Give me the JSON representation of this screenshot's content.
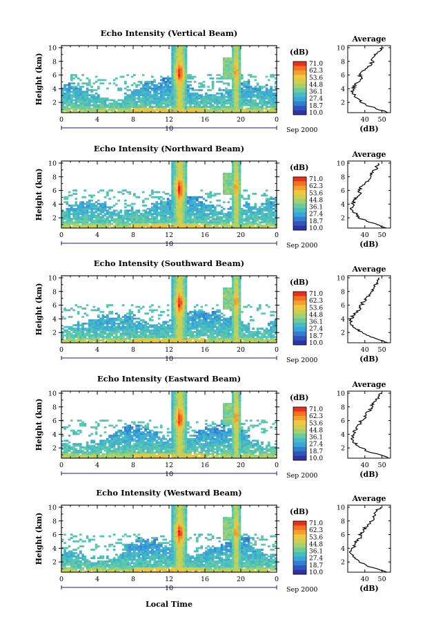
{
  "figure": {
    "xlabel": "Local Time",
    "date_label": "Sep 2000",
    "date_tick": "10",
    "colorbar_unit": "(dB)",
    "colorbar_ticks": [
      "71.0",
      "62.3",
      "53.6",
      "44.8",
      "36.1",
      "27.4",
      "18.7",
      "10.0"
    ],
    "colorbar_colors": [
      "#e3101e",
      "#f57f20",
      "#f3c63e",
      "#b9d35a",
      "#55c9b0",
      "#38a3dc",
      "#2e5fc0",
      "#35209a"
    ],
    "avg_title": "Average",
    "avg_xlabel": "(dB)",
    "ylabel": "Height (km)"
  },
  "chart_data": [
    {
      "type": "heatmap",
      "title": "Echo Intensity (Vertical Beam)",
      "ylabel": "Height (km)",
      "xlabel": "Local Time",
      "x_ticks": [
        "0",
        "4",
        "8",
        "12",
        "16",
        "20",
        "0"
      ],
      "y_ticks": [
        "2",
        "4",
        "6",
        "8",
        "10"
      ],
      "xlim": [
        0,
        24
      ],
      "ylim": [
        0.5,
        10.3
      ],
      "colorbar": {
        "label": "(dB)",
        "range": [
          10.0,
          71.0
        ]
      },
      "average_profile": {
        "title": "Average",
        "xlabel": "(dB)",
        "x_ticks": [
          "40",
          "50"
        ],
        "xlim": [
          30,
          55
        ],
        "heights": [
          0.5,
          1,
          1.5,
          2,
          2.5,
          3,
          3.5,
          4,
          4.5,
          5,
          5.5,
          6,
          6.5,
          7,
          7.5,
          8,
          8.5,
          9,
          9.5,
          10
        ],
        "values": [
          54,
          48,
          42,
          38,
          36,
          34,
          33,
          33,
          34,
          36,
          38,
          37,
          39,
          41,
          43,
          45,
          44,
          46,
          48,
          50
        ]
      }
    },
    {
      "type": "heatmap",
      "title": "Echo Intensity (Northward Beam)",
      "ylabel": "Height (km)",
      "xlabel": "Local Time",
      "x_ticks": [
        "0",
        "4",
        "8",
        "12",
        "16",
        "20",
        "0"
      ],
      "y_ticks": [
        "2",
        "4",
        "6",
        "8",
        "10"
      ],
      "xlim": [
        0,
        24
      ],
      "ylim": [
        0.5,
        10.3
      ],
      "colorbar": {
        "label": "(dB)",
        "range": [
          10.0,
          71.0
        ]
      },
      "average_profile": {
        "title": "Average",
        "xlabel": "(dB)",
        "x_ticks": [
          "40",
          "50"
        ],
        "xlim": [
          30,
          55
        ],
        "heights": [
          0.5,
          1,
          1.5,
          2,
          2.5,
          3,
          3.5,
          4,
          4.5,
          5,
          5.5,
          6,
          6.5,
          7,
          7.5,
          8,
          8.5,
          9,
          9.5,
          10
        ],
        "values": [
          53,
          47,
          41,
          37,
          35,
          33,
          32,
          33,
          34,
          35,
          37,
          37,
          38,
          40,
          42,
          44,
          44,
          46,
          47,
          49
        ]
      }
    },
    {
      "type": "heatmap",
      "title": "Echo Intensity (Southward Beam)",
      "ylabel": "Height (km)",
      "xlabel": "Local Time",
      "x_ticks": [
        "0",
        "4",
        "8",
        "12",
        "16",
        "20",
        "0"
      ],
      "y_ticks": [
        "2",
        "4",
        "6",
        "8",
        "10"
      ],
      "xlim": [
        0,
        24
      ],
      "ylim": [
        0.5,
        10.3
      ],
      "colorbar": {
        "label": "(dB)",
        "range": [
          10.0,
          71.0
        ]
      },
      "average_profile": {
        "title": "Average",
        "xlabel": "(dB)",
        "x_ticks": [
          "40",
          "50"
        ],
        "xlim": [
          30,
          55
        ],
        "heights": [
          0.5,
          1,
          1.5,
          2,
          2.5,
          3,
          3.5,
          4,
          4.5,
          5,
          5.5,
          6,
          6.5,
          7,
          7.5,
          8,
          8.5,
          9,
          9.5,
          10
        ],
        "values": [
          54,
          48,
          42,
          38,
          35,
          33,
          32,
          32,
          33,
          35,
          37,
          38,
          39,
          41,
          43,
          45,
          45,
          46,
          48,
          49
        ]
      }
    },
    {
      "type": "heatmap",
      "title": "Echo Intensity (Eastward Beam)",
      "ylabel": "Height (km)",
      "xlabel": "Local Time",
      "x_ticks": [
        "0",
        "4",
        "8",
        "12",
        "16",
        "20",
        "0"
      ],
      "y_ticks": [
        "2",
        "4",
        "6",
        "8",
        "10"
      ],
      "xlim": [
        0,
        24
      ],
      "ylim": [
        0.5,
        10.3
      ],
      "colorbar": {
        "label": "(dB)",
        "range": [
          10.0,
          71.0
        ]
      },
      "average_profile": {
        "title": "Average",
        "xlabel": "(dB)",
        "x_ticks": [
          "40",
          "50"
        ],
        "xlim": [
          30,
          55
        ],
        "heights": [
          0.5,
          1,
          1.5,
          2,
          2.5,
          3,
          3.5,
          4,
          4.5,
          5,
          5.5,
          6,
          6.5,
          7,
          7.5,
          8,
          8.5,
          9,
          9.5,
          10
        ],
        "values": [
          54,
          48,
          42,
          38,
          35,
          33,
          33,
          33,
          34,
          36,
          37,
          38,
          40,
          41,
          43,
          44,
          45,
          47,
          48,
          50
        ]
      }
    },
    {
      "type": "heatmap",
      "title": "Echo Intensity (Westward Beam)",
      "ylabel": "Height (km)",
      "xlabel": "Local Time",
      "x_ticks": [
        "0",
        "4",
        "8",
        "12",
        "16",
        "20",
        "0"
      ],
      "y_ticks": [
        "2",
        "4",
        "6",
        "8",
        "10"
      ],
      "xlim": [
        0,
        24
      ],
      "ylim": [
        0.5,
        10.3
      ],
      "colorbar": {
        "label": "(dB)",
        "range": [
          10.0,
          71.0
        ]
      },
      "average_profile": {
        "title": "Average",
        "xlabel": "(dB)",
        "x_ticks": [
          "40",
          "50"
        ],
        "xlim": [
          30,
          55
        ],
        "heights": [
          0.5,
          1,
          1.5,
          2,
          2.5,
          3,
          3.5,
          4,
          4.5,
          5,
          5.5,
          6,
          6.5,
          7,
          7.5,
          8,
          8.5,
          9,
          9.5,
          10
        ],
        "values": [
          53,
          47,
          41,
          37,
          35,
          33,
          32,
          33,
          34,
          35,
          37,
          37,
          39,
          40,
          42,
          44,
          45,
          46,
          47,
          49
        ]
      }
    }
  ]
}
